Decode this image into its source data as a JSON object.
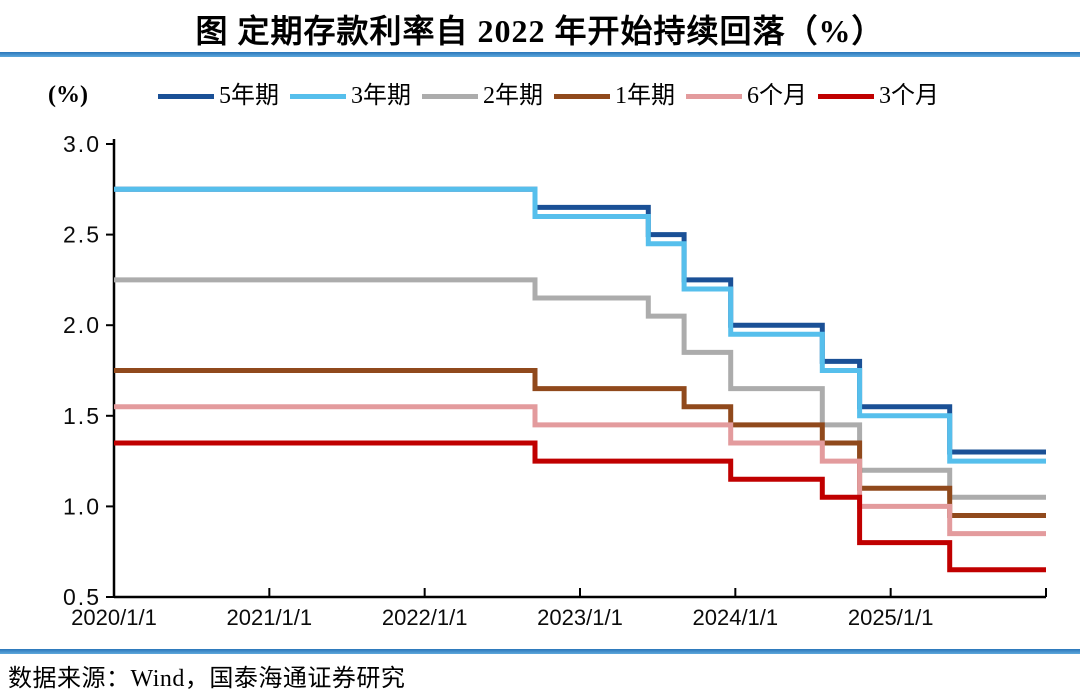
{
  "chart_data": {
    "type": "line",
    "subtype": "step-after",
    "title": "图  定期存款利率自 2022 年开始持续回落（%）",
    "unit_label": "(%)",
    "source": "数据来源：Wind，国泰海通证券研究",
    "legend_position": "top",
    "grid": false,
    "ylim": [
      0.5,
      3.0
    ],
    "y_tick_labels": [
      "3.0",
      "2.5",
      "2.0",
      "1.5",
      "1.0",
      "0.5"
    ],
    "y_ticks": [
      3.0,
      2.5,
      2.0,
      1.5,
      1.0,
      0.5
    ],
    "x_axis": {
      "range_years": [
        2020,
        2026
      ],
      "tick_labels": [
        "2020/1/1",
        "2021/1/1",
        "2022/1/1",
        "2023/1/1",
        "2024/1/1",
        "2025/1/1"
      ]
    },
    "x_step_dates": [
      "2020/1/1",
      "2022/9/15",
      "2023/6/8",
      "2023/9/1",
      "2023/12/22",
      "2024/7/25",
      "2024/10/18",
      "2025/5/20"
    ],
    "x_years": [
      2020.0,
      2022.71,
      2023.44,
      2023.67,
      2023.97,
      2024.56,
      2024.8,
      2025.38
    ],
    "x_end_year": 2026.0,
    "series": [
      {
        "name": "5年期",
        "color": "#1A5096",
        "values": [
          2.75,
          2.65,
          2.5,
          2.25,
          2.0,
          1.8,
          1.55,
          1.3
        ]
      },
      {
        "name": "3年期",
        "color": "#56BFEC",
        "values": [
          2.75,
          2.6,
          2.45,
          2.2,
          1.95,
          1.75,
          1.5,
          1.25
        ]
      },
      {
        "name": "2年期",
        "color": "#ACACAC",
        "values": [
          2.25,
          2.15,
          2.05,
          1.85,
          1.65,
          1.45,
          1.2,
          1.05
        ]
      },
      {
        "name": "1年期",
        "color": "#90491C",
        "values": [
          1.75,
          1.65,
          1.65,
          1.55,
          1.45,
          1.35,
          1.1,
          0.95
        ]
      },
      {
        "name": "6个月",
        "color": "#E39B9D",
        "values": [
          1.55,
          1.45,
          1.45,
          1.45,
          1.35,
          1.25,
          1.0,
          0.85
        ]
      },
      {
        "name": "3个月",
        "color": "#C00000",
        "values": [
          1.35,
          1.25,
          1.25,
          1.25,
          1.15,
          1.05,
          0.8,
          0.65
        ]
      }
    ]
  }
}
